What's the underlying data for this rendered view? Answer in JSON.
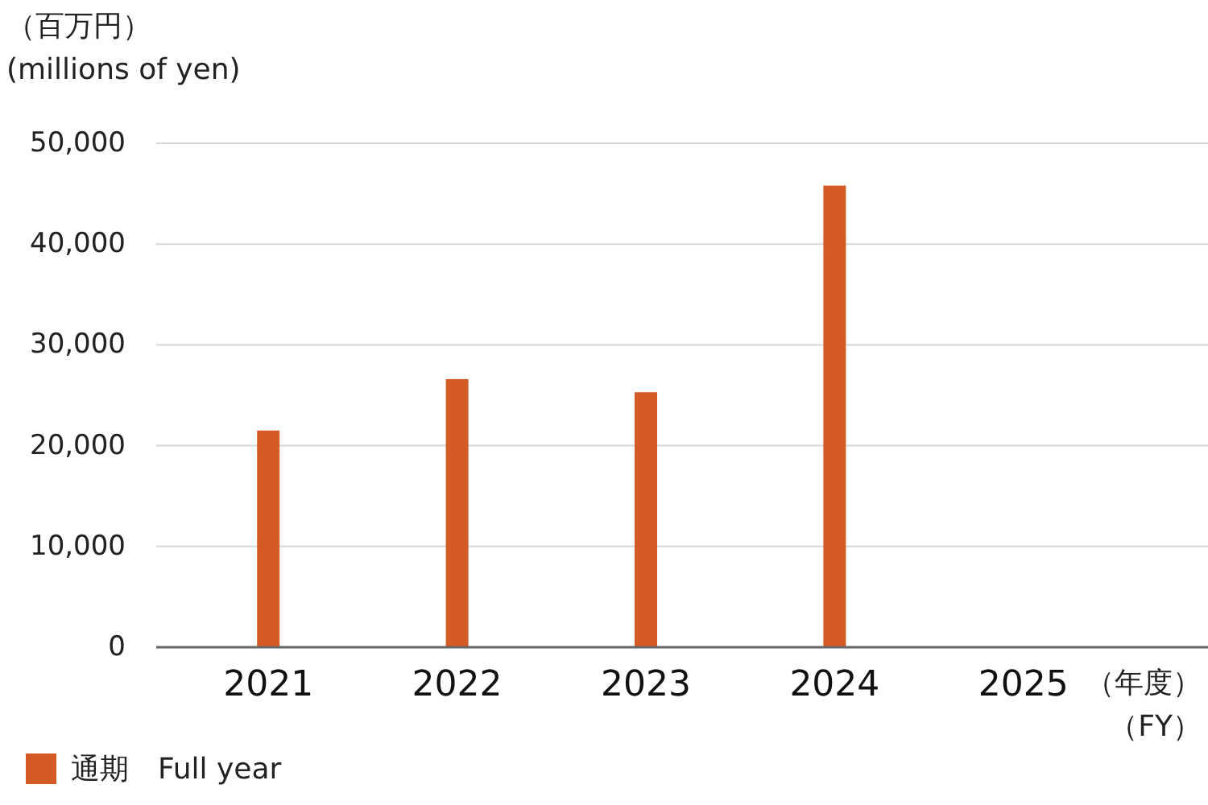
{
  "chart_data": {
    "type": "bar",
    "ylabel": "（百万円）\n(millions of yen)",
    "xlabel": "（年度）（FY）",
    "categories": [
      "2021",
      "2022",
      "2023",
      "2024",
      "2025"
    ],
    "series": [
      {
        "name": "通期　Full year",
        "color": "#d45b26",
        "values": [
          21500,
          26600,
          25300,
          45800,
          null
        ]
      }
    ],
    "ylim": [
      0,
      50000
    ],
    "yticks": [
      {
        "value": 0,
        "label": "0"
      },
      {
        "value": 10000,
        "label": "10,000"
      },
      {
        "value": 20000,
        "label": "20,000"
      },
      {
        "value": 30000,
        "label": "30,000"
      },
      {
        "value": 40000,
        "label": "40,000"
      },
      {
        "value": 50000,
        "label": "50,000"
      }
    ],
    "grid": "y",
    "legend": "bottom left"
  }
}
